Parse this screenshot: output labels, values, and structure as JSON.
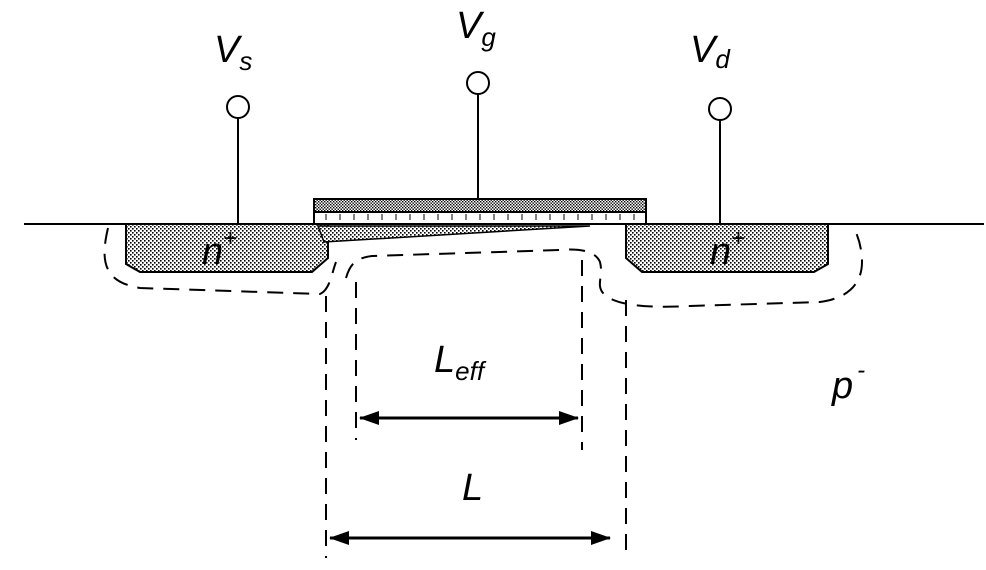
{
  "terminals": {
    "source": {
      "main": "V",
      "sub": "s"
    },
    "gate": {
      "main": "V",
      "sub": "g"
    },
    "drain": {
      "main": "V",
      "sub": "d"
    }
  },
  "regions": {
    "source_doping": {
      "main": "n",
      "sup": "+"
    },
    "drain_doping": {
      "main": "n",
      "sup": "+"
    },
    "substrate": {
      "main": "p",
      "sup": "-"
    }
  },
  "dimensions": {
    "effective_length": {
      "main": "L",
      "sub": "eff"
    },
    "drawn_length": {
      "main": "L"
    }
  }
}
